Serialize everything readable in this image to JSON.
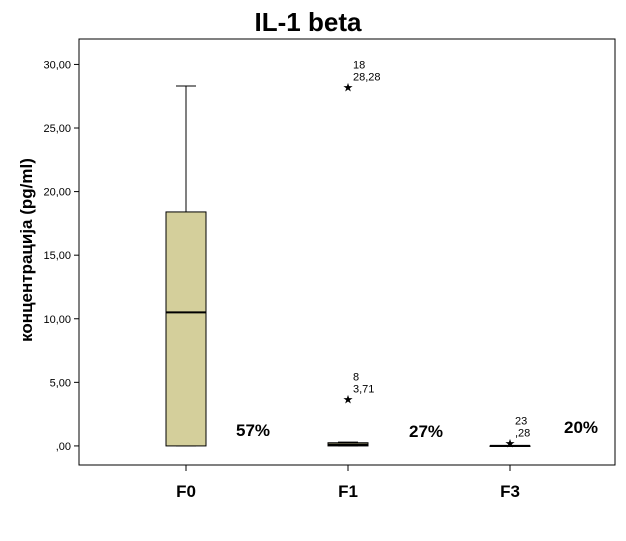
{
  "chart_data": {
    "type": "boxplot",
    "title": "IL-1 beta",
    "xlabel": "",
    "ylabel": "концентрација (pg/ml)",
    "ylim": [
      -1.5,
      32
    ],
    "yticks": [
      0,
      5,
      10,
      15,
      20,
      25,
      30
    ],
    "ytick_labels": [
      ",00",
      "5,00",
      "10,00",
      "15,00",
      "20,00",
      "25,00",
      "30,00"
    ],
    "grid": false,
    "categories": [
      "F0",
      "F1",
      "F3"
    ],
    "boxes": [
      {
        "category": "F0",
        "min": 0.0,
        "q1": 0.0,
        "median": 10.5,
        "q3": 18.4,
        "max": 28.3
      },
      {
        "category": "F1",
        "min": 0.0,
        "q1": 0.0,
        "median": 0.1,
        "q3": 0.25,
        "max": 0.3
      },
      {
        "category": "F3",
        "min": 0.0,
        "q1": 0.0,
        "median": 0.0,
        "q3": 0.0,
        "max": 0.0
      }
    ],
    "outliers": [
      {
        "category": "F1",
        "value": 28.28,
        "id": "18",
        "value_label": "28,28"
      },
      {
        "category": "F1",
        "value": 3.71,
        "id": "8",
        "value_label": "3,71"
      },
      {
        "category": "F3",
        "value": 0.28,
        "id": "23",
        "value_label": ",28"
      }
    ],
    "percent_labels": [
      {
        "category": "F0",
        "text": "57%"
      },
      {
        "category": "F1",
        "text": "27%"
      },
      {
        "category": "F3",
        "text": "20%"
      }
    ],
    "colors": {
      "box_fill": "#d4cf9b",
      "line": "#000000"
    }
  }
}
